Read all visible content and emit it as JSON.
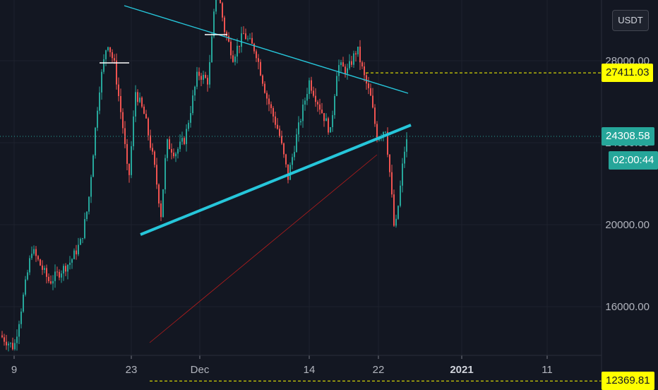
{
  "chart_data": {
    "type": "candlestick",
    "symbol_currency": "USDT",
    "y_axis": {
      "ticks": [
        "32000.00",
        "28000.00",
        "24000.00",
        "20000.00",
        "16000.00"
      ],
      "range": [
        11600,
        33200
      ]
    },
    "x_axis": {
      "ticks": [
        {
          "label": "9",
          "bold": false
        },
        {
          "label": "23",
          "bold": false
        },
        {
          "label": "Dec",
          "bold": false
        },
        {
          "label": "14",
          "bold": false
        },
        {
          "label": "22",
          "bold": false
        },
        {
          "label": "2021",
          "bold": true
        },
        {
          "label": "11",
          "bold": false
        }
      ]
    },
    "price_labels": {
      "level_high": "27411.03",
      "last_price": "24308.58",
      "countdown": "02:00:44",
      "level_low": "12369.81"
    },
    "levels": {
      "level_high_value": 27411.03,
      "last_price_value": 24308.58,
      "level_low_value": 12369.81
    },
    "colors": {
      "background": "#131722",
      "up": "#26a69a",
      "down": "#ef5350",
      "trendline": "#26c6da",
      "level": "#ffff00",
      "grid": "#1e222d"
    }
  }
}
